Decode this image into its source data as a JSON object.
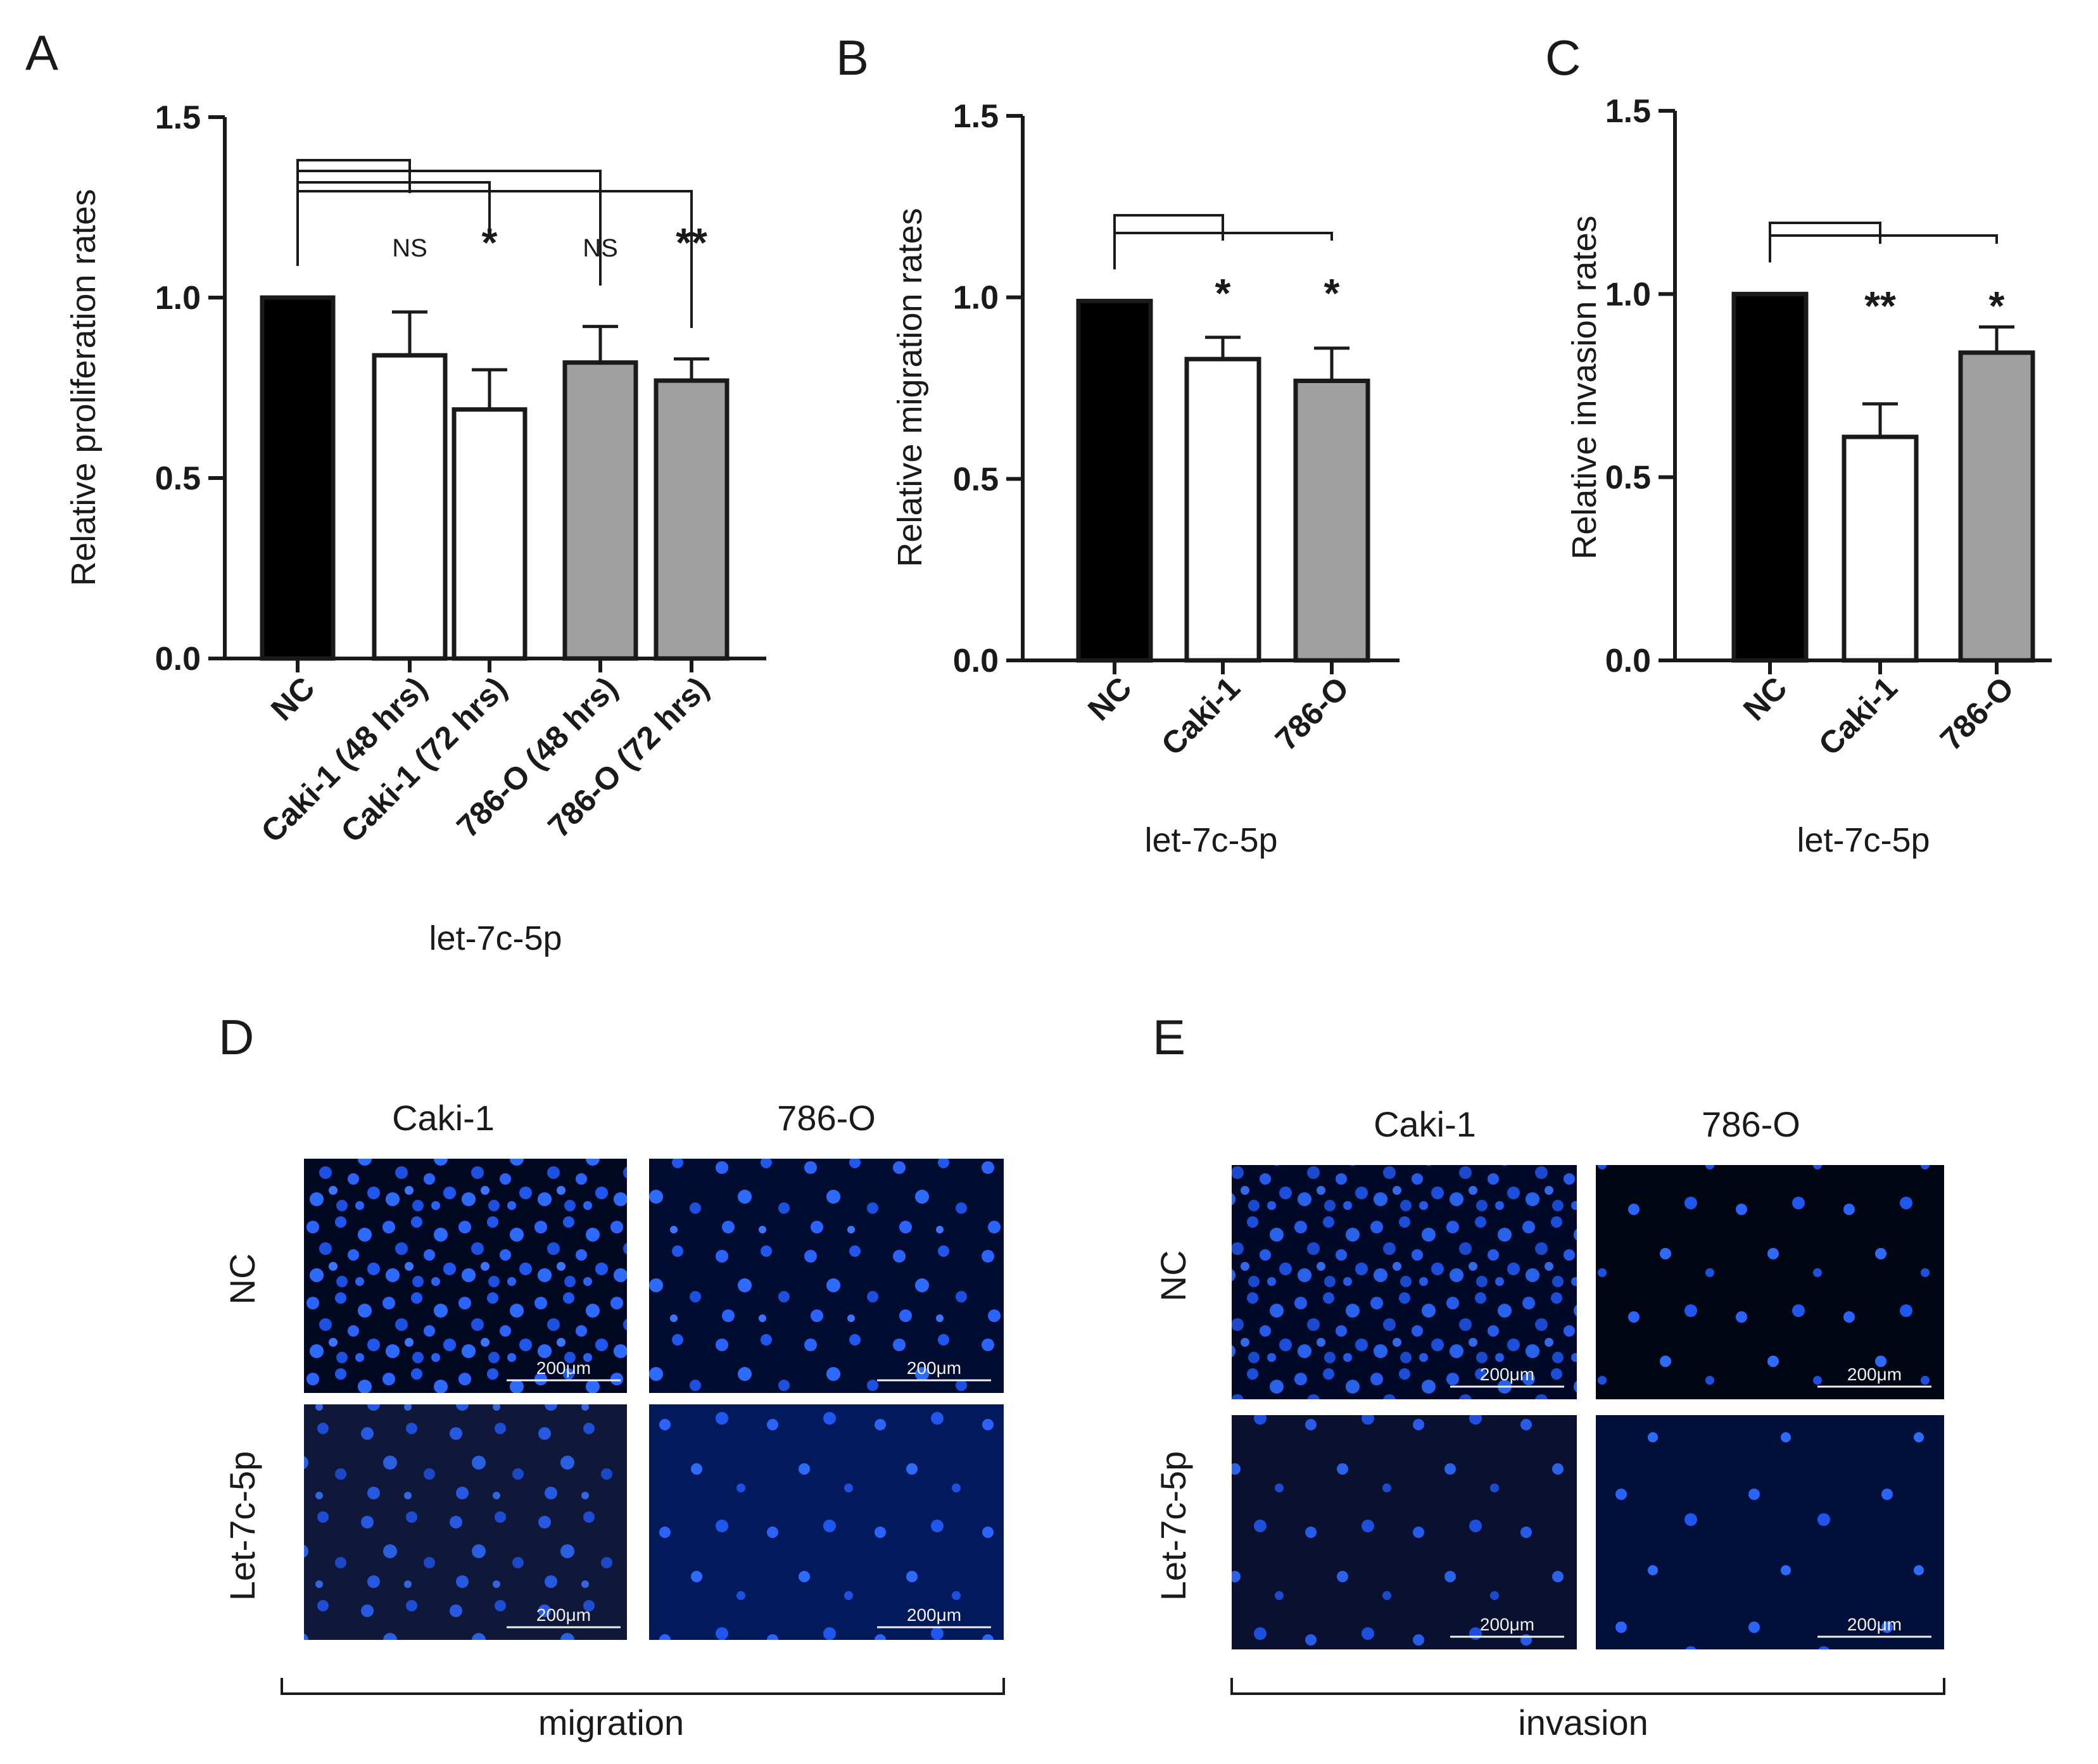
{
  "panel_letters": {
    "a": "A",
    "b": "B",
    "c": "C",
    "d": "D",
    "e": "E"
  },
  "colors": {
    "nc": "#000000",
    "caki": "#ffffff",
    "o786": "#a0a0a0",
    "line": "#1a1a1a",
    "micro_bg": "#000822",
    "nuclei": "#1f5bff"
  },
  "chart_data": [
    {
      "id": "A",
      "type": "bar",
      "ylabel": "Relative proliferation rates",
      "xlabel": "let-7c-5p",
      "ylim": [
        0,
        1.5
      ],
      "yticks": [
        "0.0",
        "0.5",
        "1.0",
        "1.5"
      ],
      "categories": [
        "NC",
        "Caki-1 (48 hrs)",
        "Caki-1 (72 hrs)",
        "786-O (48 hrs)",
        "786-O (72 hrs)"
      ],
      "values": [
        1.0,
        0.84,
        0.69,
        0.82,
        0.77
      ],
      "errors": [
        0,
        0.12,
        0.11,
        0.1,
        0.06
      ],
      "fills": [
        "nc",
        "caki",
        "caki",
        "o786",
        "o786"
      ],
      "significance": [
        "",
        "NS",
        "*",
        "NS",
        "**"
      ]
    },
    {
      "id": "B",
      "type": "bar",
      "ylabel": "Relative migration rates",
      "xlabel": "let-7c-5p",
      "ylim": [
        0,
        1.5
      ],
      "yticks": [
        "0.0",
        "0.5",
        "1.0",
        "1.5"
      ],
      "categories": [
        "NC",
        "Caki-1",
        "786-O"
      ],
      "values": [
        0.99,
        0.83,
        0.77
      ],
      "errors": [
        0,
        0.06,
        0.09
      ],
      "fills": [
        "nc",
        "caki",
        "o786"
      ],
      "significance": [
        "",
        "*",
        "*"
      ]
    },
    {
      "id": "C",
      "type": "bar",
      "ylabel": "Relative invasion rates",
      "xlabel": "let-7c-5p",
      "ylim": [
        0,
        1.5
      ],
      "yticks": [
        "0.0",
        "0.5",
        "1.0",
        "1.5"
      ],
      "categories": [
        "NC",
        "Caki-1",
        "786-O"
      ],
      "values": [
        1.0,
        0.61,
        0.84
      ],
      "errors": [
        0,
        0.09,
        0.07
      ],
      "fills": [
        "nc",
        "caki",
        "o786"
      ],
      "significance": [
        "",
        "**",
        "*"
      ]
    }
  ],
  "micrographs": {
    "D": {
      "columns": [
        "Caki-1",
        "786-O"
      ],
      "rows": [
        "NC",
        "Let-7c-5p"
      ],
      "scale_bar": "200μm",
      "group_label": "migration"
    },
    "E": {
      "columns": [
        "Caki-1",
        "786-O"
      ],
      "rows": [
        "NC",
        "Let-7c-5p"
      ],
      "scale_bar": "200μm",
      "group_label": "invasion"
    }
  }
}
